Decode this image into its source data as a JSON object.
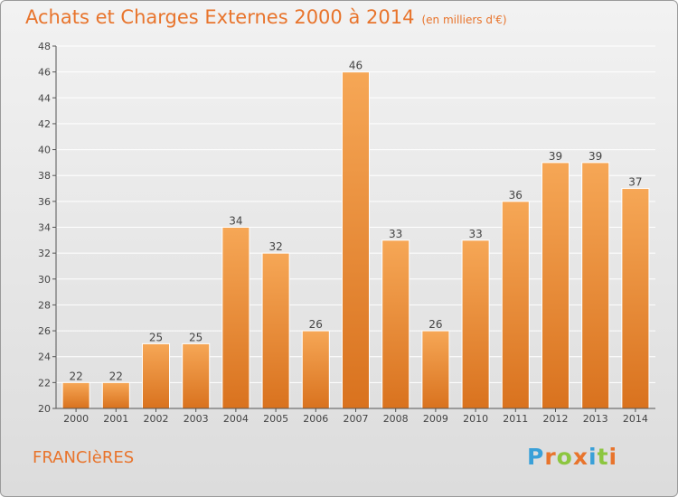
{
  "title": {
    "main": "Achats et Charges Externes 2000 à 2014",
    "unit": "(en milliers d'€)"
  },
  "town": "FRANCIèRES",
  "logo": {
    "text": "Proxiti",
    "colors": [
      "#3aa0d8",
      "#e8742c",
      "#8cc63f",
      "#e8742c",
      "#3aa0d8",
      "#8cc63f",
      "#e8742c"
    ]
  },
  "chart_data": {
    "type": "bar",
    "title": "Achats et Charges Externes 2000 à 2014",
    "categories": [
      "2000",
      "2001",
      "2002",
      "2003",
      "2004",
      "2005",
      "2006",
      "2007",
      "2008",
      "2009",
      "2010",
      "2011",
      "2012",
      "2013",
      "2014"
    ],
    "values": [
      22,
      22,
      25,
      25,
      34,
      32,
      26,
      46,
      33,
      26,
      33,
      36,
      39,
      39,
      37
    ],
    "ylim": [
      20,
      48
    ],
    "yticks": [
      20,
      22,
      24,
      26,
      28,
      30,
      32,
      34,
      36,
      38,
      40,
      42,
      44,
      46,
      48
    ],
    "grid": true,
    "bar_color_light": "#f6a756",
    "bar_color_dark": "#d9721e",
    "xlabel": "",
    "ylabel": ""
  }
}
